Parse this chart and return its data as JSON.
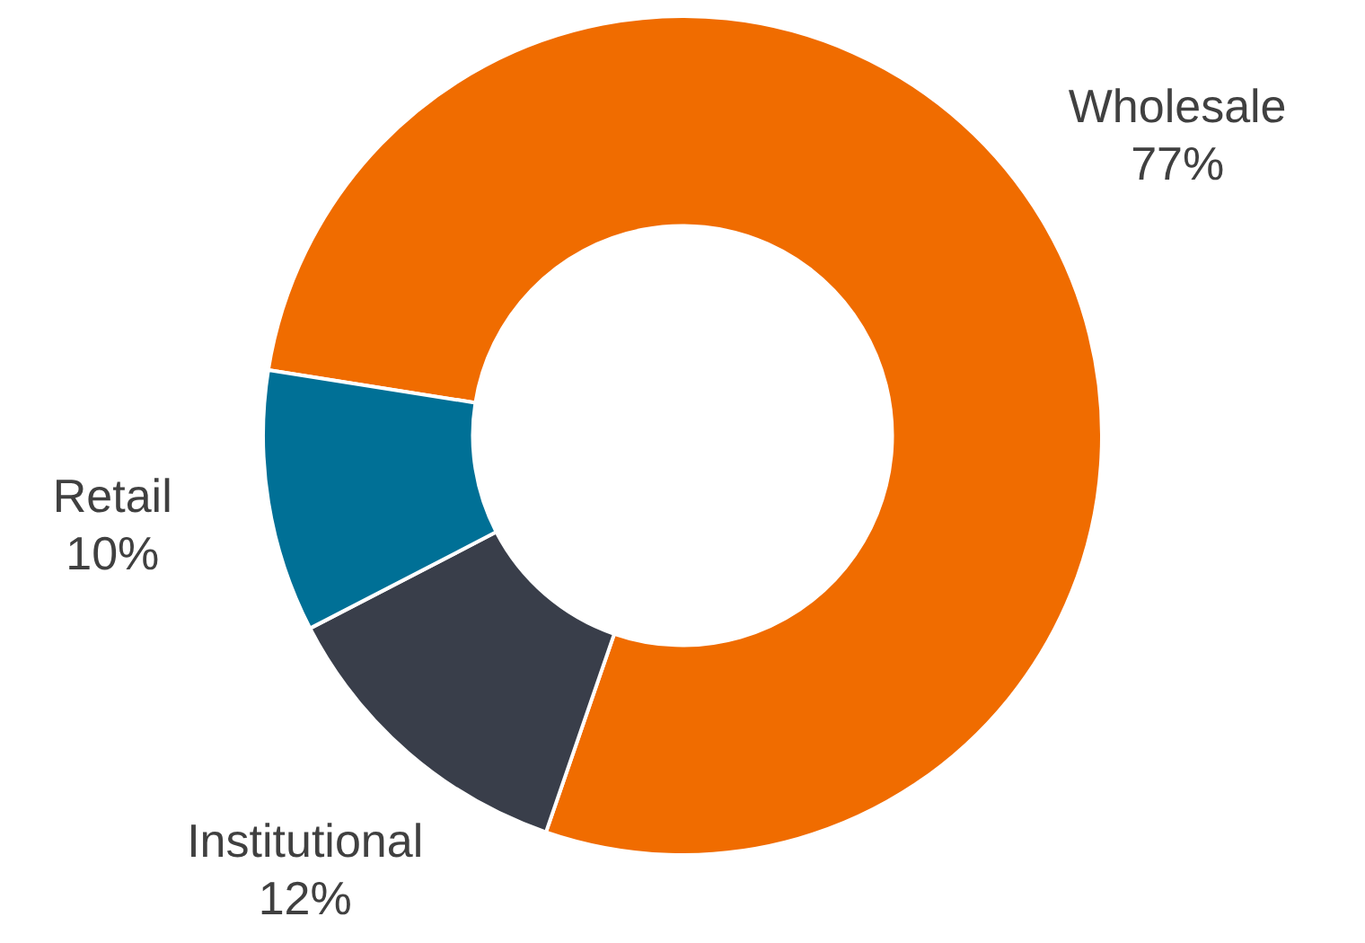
{
  "chart_data": {
    "type": "donut",
    "categories": [
      "Wholesale",
      "Institutional",
      "Retail"
    ],
    "values": [
      77,
      12,
      10
    ],
    "colors": [
      "#f06c00",
      "#393e4a",
      "#007096"
    ],
    "value_labels": [
      "77%",
      "12%",
      "10%"
    ],
    "legend": false
  }
}
